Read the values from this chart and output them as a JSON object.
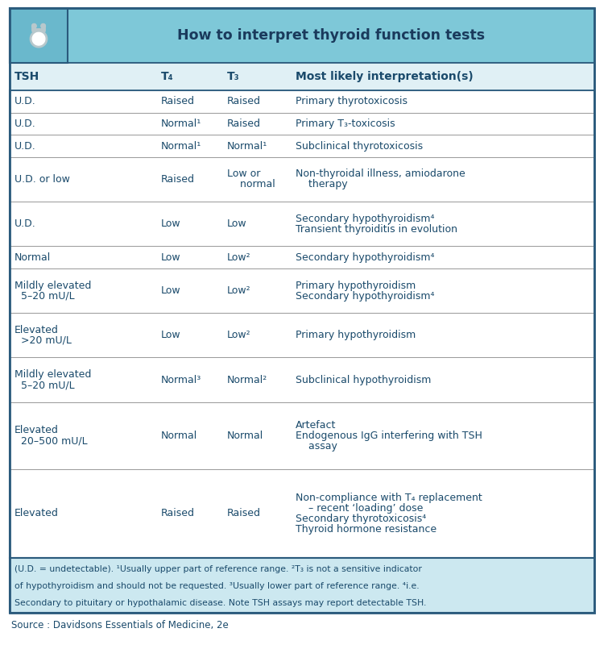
{
  "title": "How to interpret thyroid function tests",
  "header_bg": "#7EC8D8",
  "header_text_color": "#1a3a5c",
  "border_color": "#2a5a7c",
  "text_color": "#1a4a6b",
  "source_text": "Source : Davidsons Essentials of Medicine, 2e",
  "footnote_bg": "#cce8f0",
  "col_headers": [
    "TSH",
    "T₄",
    "T₃",
    "Most likely interpretation(s)"
  ],
  "rows": [
    {
      "tsh": "U.D.",
      "t4": "Raised",
      "t3": "Raised",
      "interp": "Primary thyrotoxicosis",
      "n_lines": 1
    },
    {
      "tsh": "U.D.",
      "t4": "Normal¹",
      "t3": "Raised",
      "interp": "Primary T₃-toxicosis",
      "n_lines": 1
    },
    {
      "tsh": "U.D.",
      "t4": "Normal¹",
      "t3": "Normal¹",
      "interp": "Subclinical thyrotoxicosis",
      "n_lines": 1
    },
    {
      "tsh": "U.D. or low",
      "t4": "Raised",
      "t3": "Low or\n    normal",
      "interp": "Non-thyroidal illness, amiodarone\n    therapy",
      "n_lines": 2
    },
    {
      "tsh": "U.D.",
      "t4": "Low",
      "t3": "Low",
      "interp": "Secondary hypothyroidism⁴\nTransient thyroiditis in evolution",
      "n_lines": 2
    },
    {
      "tsh": "Normal",
      "t4": "Low",
      "t3": "Low²",
      "interp": "Secondary hypothyroidism⁴",
      "n_lines": 1
    },
    {
      "tsh": "Mildly elevated\n  5–20 mU/L",
      "t4": "Low",
      "t3": "Low²",
      "interp": "Primary hypothyroidism\nSecondary hypothyroidism⁴",
      "n_lines": 2
    },
    {
      "tsh": "Elevated\n  >20 mU/L",
      "t4": "Low",
      "t3": "Low²",
      "interp": "Primary hypothyroidism",
      "n_lines": 2
    },
    {
      "tsh": "Mildly elevated\n  5–20 mU/L",
      "t4": "Normal³",
      "t3": "Normal²",
      "interp": "Subclinical hypothyroidism",
      "n_lines": 2
    },
    {
      "tsh": "Elevated\n  20–500 mU/L",
      "t4": "Normal",
      "t3": "Normal",
      "interp": "Artefact\nEndogenous IgG interfering with TSH\n    assay",
      "n_lines": 3
    },
    {
      "tsh": "Elevated",
      "t4": "Raised",
      "t3": "Raised",
      "interp": "Non-compliance with T₄ replacement\n    – recent ‘loading’ dose\nSecondary thyrotoxicosis⁴\nThyroid hormone resistance",
      "n_lines": 4
    }
  ],
  "footnote_line1": "(U.D. = undetectable). ¹Usually upper part of reference range. ²T₃ is not a sensitive indicator",
  "footnote_line2": "of hypothyroidism and should not be requested. ³Usually lower part of reference range. ⁴i.e.",
  "footnote_line3": "Secondary to pituitary or hypothalamic disease. Note TSH assays may report detectable TSH."
}
